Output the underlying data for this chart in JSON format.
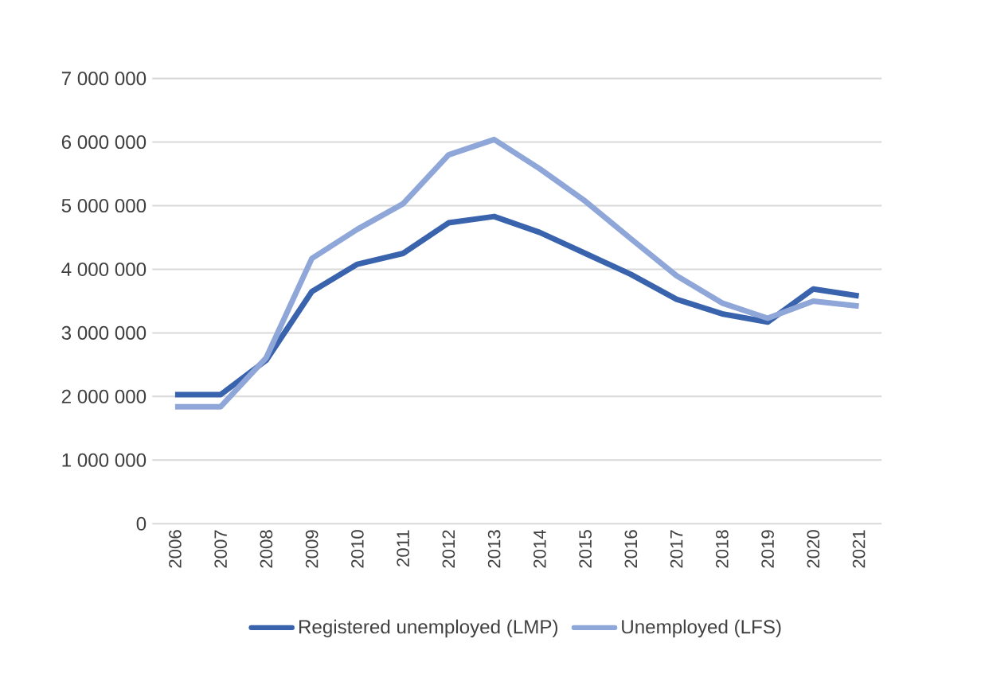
{
  "chart_data": {
    "type": "line",
    "categories": [
      "2006",
      "2007",
      "2008",
      "2009",
      "2010",
      "2011",
      "2012",
      "2013",
      "2014",
      "2015",
      "2016",
      "2017",
      "2018",
      "2019",
      "2020",
      "2021"
    ],
    "series": [
      {
        "name": "Registered unemployed (LMP)",
        "color": "#3a63ad",
        "values": [
          2030000,
          2030000,
          2570000,
          3650000,
          4080000,
          4250000,
          4730000,
          4830000,
          4580000,
          4250000,
          3920000,
          3530000,
          3300000,
          3170000,
          3690000,
          3580000
        ]
      },
      {
        "name": "Unemployed (LFS)",
        "color": "#8fa6d9",
        "values": [
          1840000,
          1840000,
          2610000,
          4170000,
          4630000,
          5030000,
          5800000,
          6040000,
          5580000,
          5070000,
          4480000,
          3900000,
          3470000,
          3230000,
          3500000,
          3420000
        ]
      }
    ],
    "ylim": [
      0,
      7000000
    ],
    "yticks": [
      {
        "value": 0,
        "label": "0"
      },
      {
        "value": 1000000,
        "label": "1 000 000"
      },
      {
        "value": 2000000,
        "label": "2 000 000"
      },
      {
        "value": 3000000,
        "label": "3 000 000"
      },
      {
        "value": 4000000,
        "label": "4 000 000"
      },
      {
        "value": 5000000,
        "label": "5 000 000"
      },
      {
        "value": 6000000,
        "label": "6 000 000"
      },
      {
        "value": 7000000,
        "label": "7 000 000"
      }
    ],
    "grid": "y",
    "legend": "bottom",
    "marker": "none",
    "line_style": "solid"
  }
}
